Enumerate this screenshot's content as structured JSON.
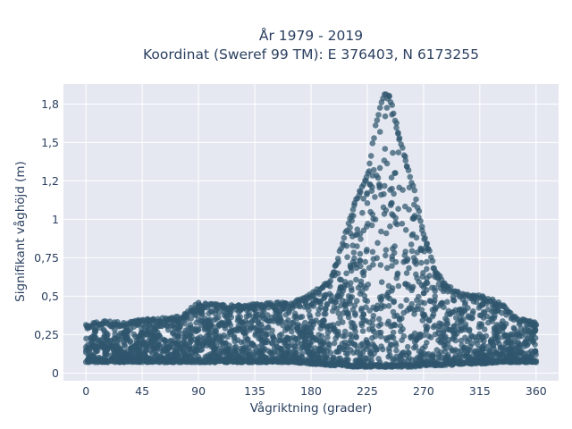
{
  "chart_data": {
    "type": "scatter",
    "title": "År 1979 - 2019",
    "subtitle": "Koordinat (Sweref 99 TM): E 376403, N 6173255",
    "xlabel": "Vågriktning (grader)",
    "ylabel": "Signifikant våghöjd (m)",
    "xlim": [
      -18,
      378
    ],
    "ylim": [
      -0.05,
      1.88
    ],
    "x_ticks": [
      0,
      45,
      90,
      135,
      180,
      225,
      270,
      315,
      360
    ],
    "x_tick_labels": [
      "0",
      "45",
      "90",
      "135",
      "180",
      "225",
      "270",
      "315",
      "360"
    ],
    "y_ticks": [
      0,
      0.25,
      0.5,
      0.75,
      1,
      1.25,
      1.5,
      1.75
    ],
    "y_tick_labels": [
      "0",
      "0,25",
      "0,5",
      "0,75",
      "1",
      "1,2",
      "1,5",
      "1,8"
    ],
    "grid": true,
    "marker_color": "#2f566e",
    "background_color": "#e5e8f1",
    "envelope": {
      "direction": [
        0,
        15,
        30,
        45,
        60,
        75,
        90,
        105,
        120,
        135,
        150,
        165,
        180,
        195,
        205,
        215,
        225,
        232,
        238,
        243,
        248,
        255,
        262,
        270,
        280,
        290,
        300,
        315,
        330,
        345,
        360
      ],
      "max_height": [
        0.32,
        0.34,
        0.33,
        0.35,
        0.36,
        0.37,
        0.46,
        0.45,
        0.44,
        0.45,
        0.46,
        0.46,
        0.52,
        0.6,
        0.85,
        1.12,
        1.3,
        1.63,
        1.82,
        1.81,
        1.64,
        1.42,
        1.22,
        0.93,
        0.66,
        0.57,
        0.52,
        0.51,
        0.47,
        0.36,
        0.33
      ],
      "min_height": [
        0.07,
        0.07,
        0.07,
        0.07,
        0.07,
        0.07,
        0.07,
        0.07,
        0.07,
        0.07,
        0.07,
        0.07,
        0.06,
        0.05,
        0.05,
        0.04,
        0.04,
        0.04,
        0.04,
        0.04,
        0.04,
        0.04,
        0.04,
        0.05,
        0.05,
        0.05,
        0.06,
        0.06,
        0.07,
        0.07,
        0.07
      ]
    }
  }
}
